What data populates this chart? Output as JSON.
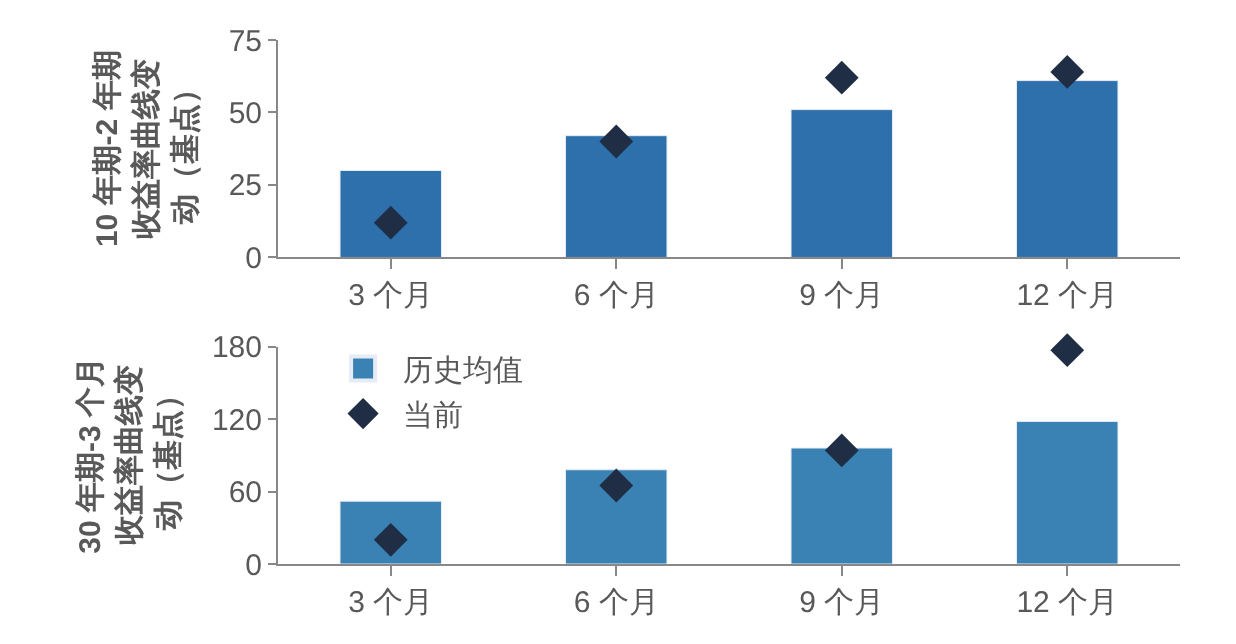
{
  "chart_data": [
    {
      "type": "bar",
      "ylabel": "10 年期-2 年期收益率曲线变动（基点）",
      "categories": [
        "3 个月",
        "6 个月",
        "9 个月",
        "12 个月"
      ],
      "ylim": [
        0,
        75
      ],
      "yticks": [
        0,
        25,
        50,
        75
      ],
      "legend": false,
      "series": [
        {
          "color": "#2e70ac",
          "values": [
            30,
            42,
            51,
            61
          ]
        },
        {
          "type": "scatter",
          "marker": "diamond",
          "color": "#1f2e45",
          "values": [
            12,
            40,
            62,
            64
          ]
        }
      ]
    },
    {
      "type": "bar",
      "ylabel": "30 年期-3 个月收益率曲线变动（基点）",
      "categories": [
        "3 个月",
        "6 个月",
        "9 个月",
        "12 个月"
      ],
      "ylim": [
        0,
        180
      ],
      "yticks": [
        0,
        60,
        120,
        180
      ],
      "legend": "top left",
      "series": [
        {
          "name": "历史均值",
          "color": "#3a82b3",
          "values": [
            52,
            78,
            96,
            118
          ]
        },
        {
          "name": "当前",
          "type": "scatter",
          "marker": "diamond",
          "color": "#1f2e45",
          "values": [
            20,
            65,
            94,
            177
          ]
        }
      ]
    }
  ]
}
